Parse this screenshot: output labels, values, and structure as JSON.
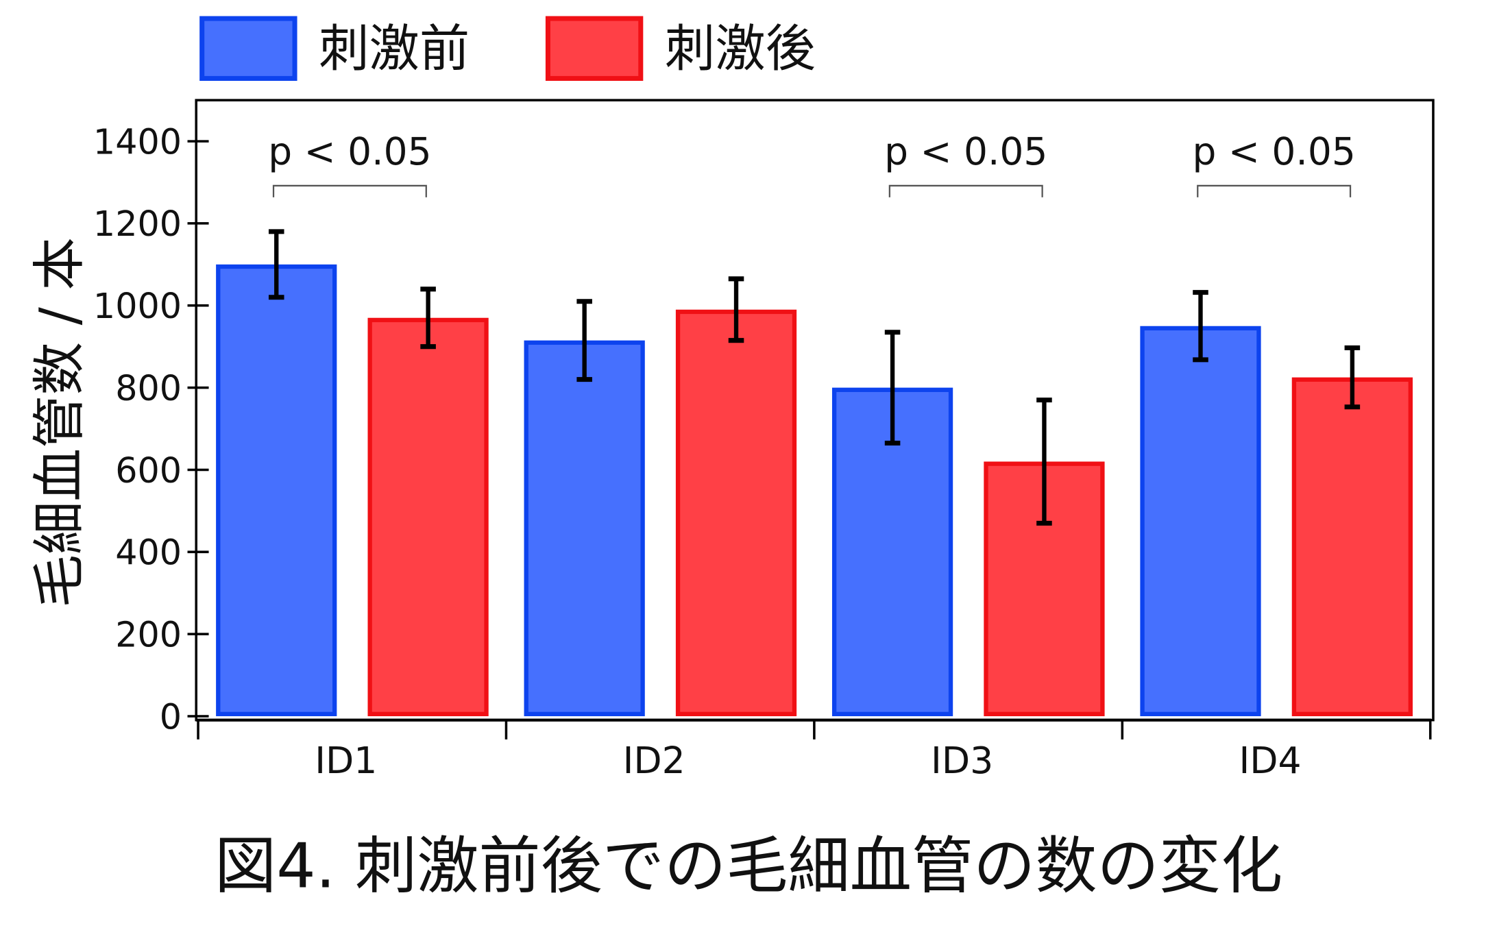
{
  "caption": "図4. 刺激前後での毛細血管の数の変化",
  "chart_data": {
    "type": "bar",
    "title": "",
    "xlabel": "",
    "ylabel": "毛細血管数 / 本",
    "categories": [
      "ID1",
      "ID2",
      "ID3",
      "ID4"
    ],
    "ylim": [
      0,
      1500
    ],
    "yticks": [
      0,
      200,
      400,
      600,
      800,
      1000,
      1200,
      1400
    ],
    "series": [
      {
        "name": "刺激前",
        "fill": "#4670fe",
        "edge": "#0d43ee",
        "values": [
          1100,
          915,
          800,
          950
        ],
        "errors": [
          80,
          95,
          135,
          82
        ]
      },
      {
        "name": "刺激後",
        "fill": "#ff4046",
        "edge": "#f01015",
        "values": [
          970,
          990,
          620,
          825
        ],
        "errors": [
          70,
          75,
          150,
          72
        ]
      }
    ],
    "annotations": [
      {
        "category_index": 0,
        "text": "p < 0.05"
      },
      {
        "category_index": 2,
        "text": "p < 0.05"
      },
      {
        "category_index": 3,
        "text": "p < 0.05"
      }
    ]
  }
}
